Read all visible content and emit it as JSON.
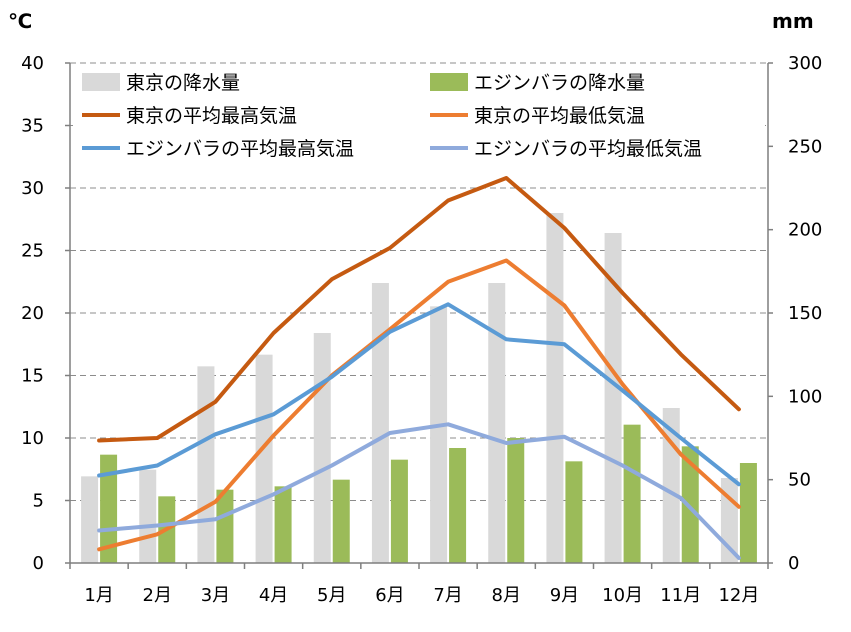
{
  "chart_data": {
    "type": "bar+line",
    "categories": [
      "1月",
      "2月",
      "3月",
      "4月",
      "5月",
      "6月",
      "7月",
      "8月",
      "9月",
      "10月",
      "11月",
      "12月"
    ],
    "y_left": {
      "unit": "℃",
      "ylim": [
        0,
        40
      ],
      "ticks": [
        0,
        5,
        10,
        15,
        20,
        25,
        30,
        35,
        40
      ]
    },
    "y_right": {
      "unit": "mm",
      "ylim": [
        0,
        300
      ],
      "ticks": [
        0,
        50,
        100,
        150,
        200,
        250,
        300
      ]
    },
    "grid": true,
    "legend_position": "top",
    "bar_series": [
      {
        "name": "東京の降水量",
        "axis": "right",
        "color": "#d9d9d9",
        "values": [
          52,
          56,
          118,
          125,
          138,
          168,
          154,
          168,
          210,
          198,
          93,
          51
        ]
      },
      {
        "name": "エジンバラの降水量",
        "axis": "right",
        "color": "#9bbb59",
        "values": [
          65,
          40,
          44,
          46,
          50,
          62,
          69,
          75,
          61,
          83,
          70,
          60
        ]
      }
    ],
    "line_series": [
      {
        "name": "東京の平均最高気温",
        "axis": "left",
        "color": "#c55a11",
        "values": [
          9.8,
          10.0,
          12.9,
          18.4,
          22.7,
          25.2,
          29.0,
          30.8,
          26.8,
          21.6,
          16.7,
          12.3
        ]
      },
      {
        "name": "東京の平均最低気温",
        "axis": "left",
        "color": "#ed7d31",
        "values": [
          1.1,
          2.3,
          4.9,
          10.2,
          15.0,
          18.7,
          22.5,
          24.2,
          20.6,
          14.3,
          8.7,
          4.5
        ]
      },
      {
        "name": "エジンバラの平均最高気温",
        "axis": "left",
        "color": "#5b9bd5",
        "values": [
          7.0,
          7.8,
          10.3,
          11.9,
          14.9,
          18.5,
          20.7,
          17.9,
          17.5,
          13.8,
          10.0,
          6.3
        ]
      },
      {
        "name": "エジンバラの平均最低気温",
        "axis": "left",
        "color": "#8faadc",
        "values": [
          2.6,
          3.0,
          3.5,
          5.5,
          7.8,
          10.4,
          11.1,
          9.6,
          10.1,
          7.8,
          5.2,
          0.4
        ]
      }
    ]
  }
}
